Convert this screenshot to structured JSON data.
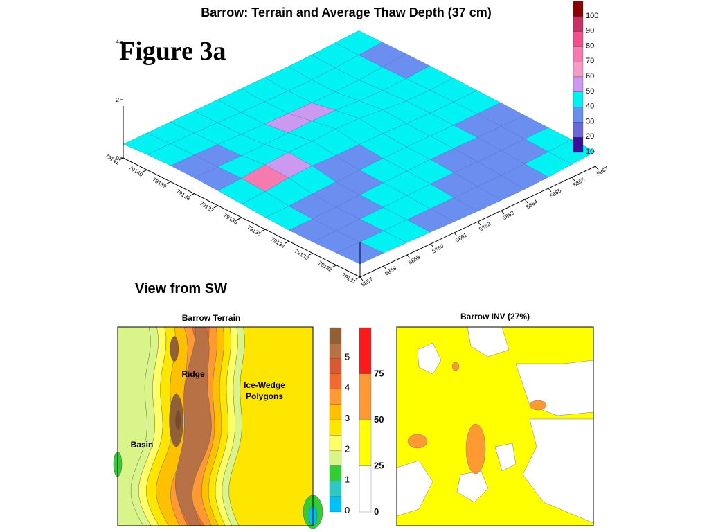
{
  "page": {
    "title": "Barrow: Terrain and Average Thaw Depth (37 cm)",
    "figure_label": "Figure 3a",
    "view_label": "View from SW"
  },
  "colors": {
    "thaw": [
      "#3a0f9a",
      "#6a6ad6",
      "#6b8ff0",
      "#00f2f2",
      "#cc99f0",
      "#f59cc6",
      "#f57ab0",
      "#f0508c",
      "#c83066",
      "#8b0000"
    ],
    "terrain": [
      "#00c0f8",
      "#2fc7c2",
      "#33cc33",
      "#d9f58a",
      "#ffff66",
      "#ffe600",
      "#ffc000",
      "#ff9a33",
      "#f26a2e",
      "#d85a33",
      "#b87045",
      "#926036"
    ],
    "inv": [
      "#ffffff",
      "#ffff00",
      "#ff9a33",
      "#ff1a1a"
    ]
  },
  "chart_data": [
    {
      "type": "surface",
      "title": "Barrow: Terrain and Average Thaw Depth (37 cm)",
      "x_ticks": [
        "5857",
        "5858",
        "5859",
        "5860",
        "5861",
        "5862",
        "5863",
        "5864",
        "5865",
        "5866",
        "5867"
      ],
      "y_ticks": [
        "79131",
        "79132",
        "79133",
        "79134",
        "79135",
        "79136",
        "79137",
        "79138",
        "79139",
        "79140",
        "79141"
      ],
      "z_ticks": [
        "0",
        "2",
        "4"
      ],
      "colorbar": {
        "ticks": [
          "10",
          "20",
          "30",
          "40",
          "50",
          "60",
          "70",
          "80",
          "90",
          "100"
        ]
      },
      "grid": "11x11"
    },
    {
      "type": "heatmap",
      "title": "Barrow Terrain",
      "annotations": [
        "Ridge",
        "Ice-Wedge Polygons",
        "Basin"
      ],
      "colorbar": {
        "ticks": [
          "0",
          "1",
          "2",
          "3",
          "4",
          "5"
        ]
      }
    },
    {
      "type": "heatmap",
      "title": "Barrow INV (27%)",
      "colorbar": {
        "ticks": [
          "0",
          "25",
          "50",
          "75"
        ]
      }
    }
  ]
}
